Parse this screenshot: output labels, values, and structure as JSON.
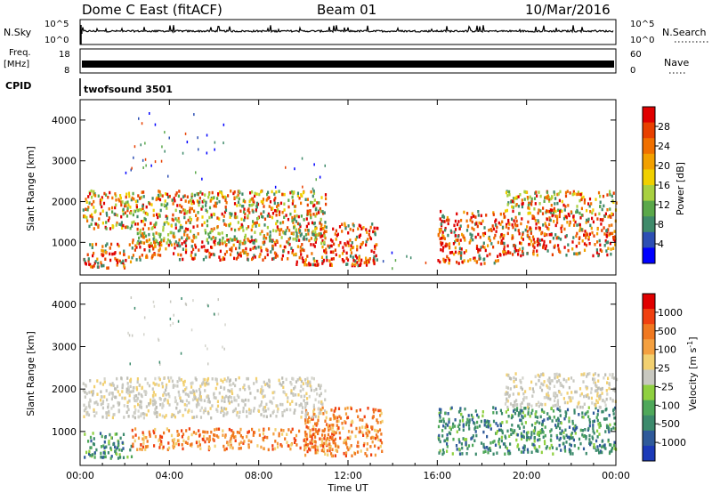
{
  "header": {
    "station": "Dome C East (fitACF)",
    "beam": "Beam 01",
    "date": "10/Mar/2016"
  },
  "strip": {
    "nsky_label": "N.Sky",
    "nsky_tick_top": "10^5",
    "nsky_tick_bottom": "10^0",
    "nsearch_label": "N.Search",
    "nsearch_tick_top": "10^5",
    "nsearch_tick_bottom": "10^0",
    "freq_label_1": "Freq.",
    "freq_label_2": "[MHz]",
    "freq_tick_top": "18",
    "freq_tick_bottom": "8",
    "nave_label": "Nave",
    "nave_tick_top": "60",
    "nave_tick_bottom": "0",
    "cpid_label": "CPID",
    "cpid_value": "twofsound 3501"
  },
  "chart_data": [
    {
      "type": "heatmap",
      "name": "power",
      "ylabel": "Slant Range [km]",
      "yticks": [
        "1000",
        "2000",
        "3000",
        "4000"
      ],
      "ylim": [
        200,
        4500
      ],
      "xlim_hours": [
        0,
        24
      ],
      "colorbar_label": "Power [dB]",
      "colorbar_ticks": [
        "4",
        "8",
        "12",
        "16",
        "20",
        "24",
        "28"
      ],
      "colorbar_colors": [
        "#0000ff",
        "#2d4fb4",
        "#3f8a6a",
        "#5aa84a",
        "#a8d040",
        "#f0d000",
        "#f2a000",
        "#f07000",
        "#e84000",
        "#e00000"
      ],
      "bands": [
        {
          "t0": 0.1,
          "t1": 2.3,
          "r0": 400,
          "r1": 1000,
          "level": "strong"
        },
        {
          "t0": 2.3,
          "t1": 9.5,
          "r0": 600,
          "r1": 1100,
          "level": "strong"
        },
        {
          "t0": 9.5,
          "t1": 13.3,
          "r0": 450,
          "r1": 1500,
          "level": "strong"
        },
        {
          "t0": 0.1,
          "t1": 11.0,
          "r0": 1350,
          "r1": 2300,
          "level": "mixed"
        },
        {
          "t0": 2.5,
          "t1": 11.0,
          "r0": 1000,
          "r1": 1350,
          "level": "weak"
        },
        {
          "t0": 13.3,
          "t1": 15.8,
          "r0": 250,
          "r1": 800,
          "level": "sparse"
        },
        {
          "t0": 16.0,
          "t1": 19.0,
          "r0": 500,
          "r1": 1800,
          "level": "strong"
        },
        {
          "t0": 19.0,
          "t1": 24.0,
          "r0": 700,
          "r1": 1700,
          "level": "strong"
        },
        {
          "t0": 19.0,
          "t1": 24.0,
          "r0": 1700,
          "r1": 2300,
          "level": "mixed"
        },
        {
          "t0": 2.0,
          "t1": 6.5,
          "r0": 2500,
          "r1": 4200,
          "level": "sparse"
        },
        {
          "t0": 8.5,
          "t1": 11.0,
          "r0": 2300,
          "r1": 3100,
          "level": "sparse"
        }
      ]
    },
    {
      "type": "heatmap",
      "name": "velocity",
      "ylabel": "Slant Range [km]",
      "yticks": [
        "1000",
        "2000",
        "3000",
        "4000"
      ],
      "ylim": [
        200,
        4500
      ],
      "xlim_hours": [
        0,
        24
      ],
      "colorbar_label": "Velocity [m s^-1]",
      "colorbar_ticks": [
        "1000",
        "500",
        "100",
        "25",
        "-25",
        "-100",
        "-500",
        "-1000"
      ],
      "colorbar_colors": [
        "#1c3ab8",
        "#2f5a9a",
        "#3c8a6c",
        "#4fa85a",
        "#8fd040",
        "#c8c8c0",
        "#f2d070",
        "#f4a040",
        "#f07820",
        "#f04010",
        "#e00000"
      ],
      "bands": [
        {
          "t0": 0.1,
          "t1": 2.3,
          "r0": 400,
          "r1": 1000,
          "level": "green"
        },
        {
          "t0": 2.3,
          "t1": 11.5,
          "r0": 600,
          "r1": 1100,
          "level": "orange"
        },
        {
          "t0": 10.0,
          "t1": 13.5,
          "r0": 450,
          "r1": 1600,
          "level": "orange"
        },
        {
          "t0": 0.1,
          "t1": 11.0,
          "r0": 1350,
          "r1": 2300,
          "level": "grey"
        },
        {
          "t0": 16.0,
          "t1": 24.0,
          "r0": 500,
          "r1": 1600,
          "level": "green"
        },
        {
          "t0": 19.0,
          "t1": 24.0,
          "r0": 1600,
          "r1": 2400,
          "level": "grey"
        },
        {
          "t0": 2.0,
          "t1": 6.5,
          "r0": 2500,
          "r1": 4200,
          "level": "sparse-grey"
        }
      ]
    }
  ],
  "xaxis": {
    "ticks": [
      "00:00",
      "04:00",
      "08:00",
      "12:00",
      "16:00",
      "20:00",
      "00:00"
    ],
    "label": "Time UT"
  }
}
